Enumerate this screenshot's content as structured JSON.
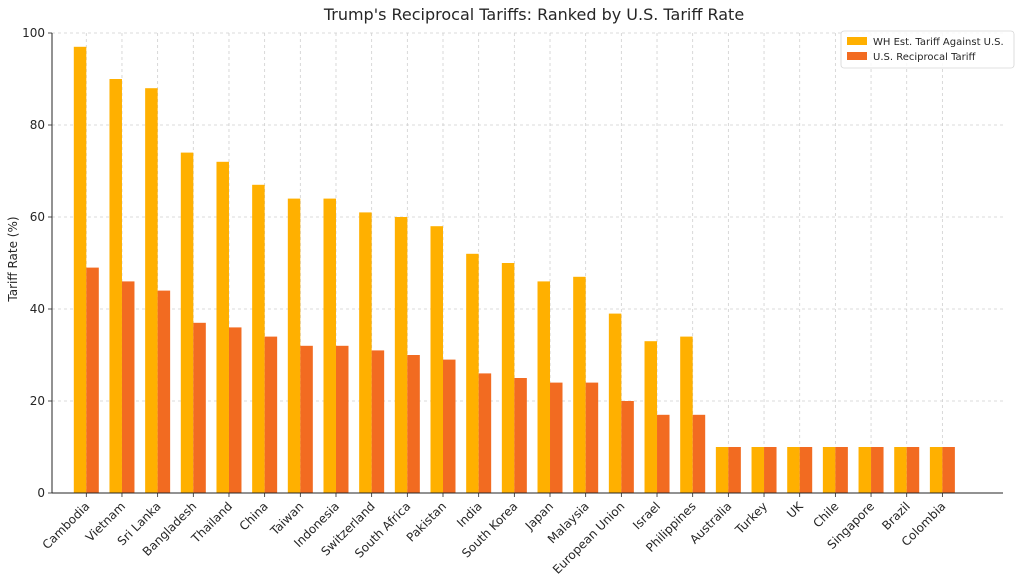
{
  "chart_data": {
    "type": "bar",
    "title": "Trump's Reciprocal Tariffs: Ranked by U.S. Tariff Rate",
    "xlabel": "",
    "ylabel": "Tariff Rate (%)",
    "ylim": [
      0,
      100
    ],
    "yticks": [
      0,
      20,
      40,
      60,
      80,
      100
    ],
    "grid": true,
    "legend_position": "top-right",
    "categories": [
      "Cambodia",
      "Vietnam",
      "Sri Lanka",
      "Bangladesh",
      "Thailand",
      "China",
      "Taiwan",
      "Indonesia",
      "Switzerland",
      "South Africa",
      "Pakistan",
      "India",
      "South Korea",
      "Japan",
      "Malaysia",
      "European Union",
      "Israel",
      "Philippines",
      "Australia",
      "Turkey",
      "UK",
      "Chile",
      "Singapore",
      "Brazil",
      "Colombia"
    ],
    "series": [
      {
        "name": "WH Est. Tariff Against U.S.",
        "color": "#FFB000",
        "values": [
          97,
          90,
          88,
          74,
          72,
          67,
          64,
          64,
          61,
          60,
          58,
          52,
          50,
          46,
          47,
          39,
          33,
          34,
          10,
          10,
          10,
          10,
          10,
          10,
          10
        ]
      },
      {
        "name": "U.S. Reciprocal Tariff",
        "color": "#F26B21",
        "values": [
          49,
          46,
          44,
          37,
          36,
          34,
          32,
          32,
          31,
          30,
          29,
          26,
          25,
          24,
          24,
          20,
          17,
          17,
          10,
          10,
          10,
          10,
          10,
          10,
          10
        ]
      }
    ]
  }
}
